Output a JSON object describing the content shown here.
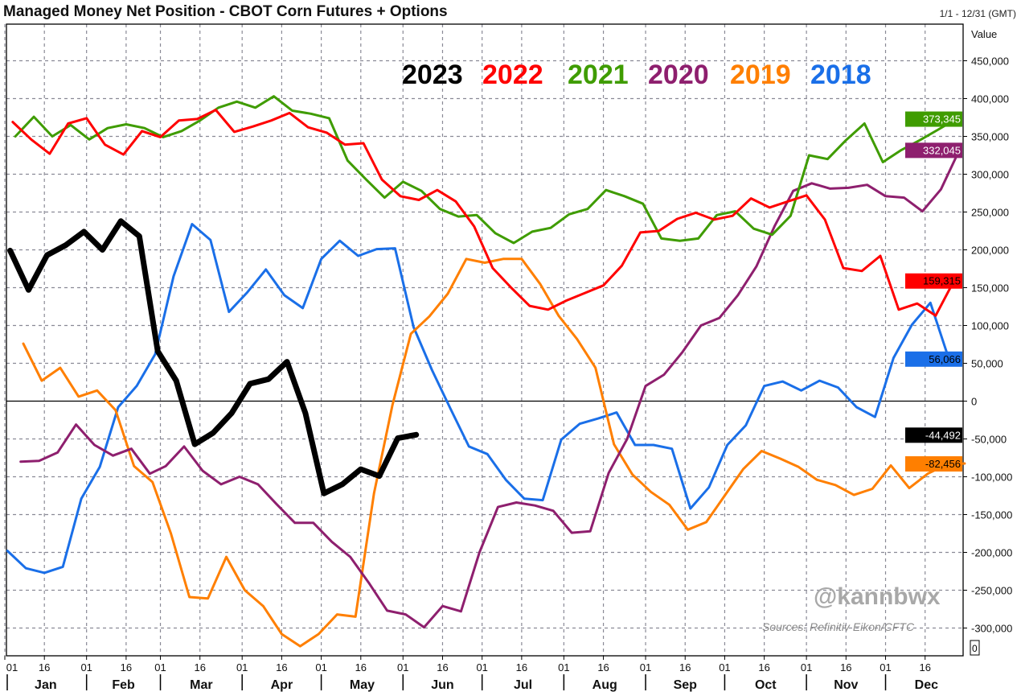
{
  "header": {
    "title": "Managed Money Net Position - CBOT Corn Futures + Options",
    "date_range": "1/1 - 12/31 (GMT)"
  },
  "watermark": "@kannbwx",
  "source": "Sources: Refinitiv Eikon/CFTC",
  "corner_box": "0",
  "chart_data": {
    "type": "line",
    "title": "Managed Money Net Position - CBOT Corn Futures + Options",
    "ylabel": "Value",
    "xlabel": "",
    "ylim": [
      -337000,
      498000
    ],
    "grid": true,
    "legend": "top-center",
    "y_ticks": [
      450000,
      400000,
      350000,
      300000,
      250000,
      200000,
      150000,
      100000,
      50000,
      0,
      -50000,
      -100000,
      -150000,
      -200000,
      -250000,
      -300000
    ],
    "y_tick_labels": [
      "450,000",
      "400,000",
      "350,000",
      "300,000",
      "250,000",
      "200,000",
      "150,000",
      "100,000",
      "50,000",
      "0",
      "-50,000",
      "-100,000",
      "-150,000",
      "-200,000",
      "-250,000",
      "-300,000"
    ],
    "x_tick_labels": [
      "01",
      "16"
    ],
    "months": [
      "Jan",
      "Feb",
      "Mar",
      "Apr",
      "May",
      "Jun",
      "Jul",
      "Aug",
      "Sep",
      "Oct",
      "Nov",
      "Dec"
    ],
    "series": [
      {
        "name": "2023",
        "color": "#000000",
        "last_label": "-44,492",
        "badge_text_color": "#ffffff",
        "dates": [
          "01-03",
          "01-10",
          "01-17",
          "01-24",
          "01-31",
          "02-07",
          "02-14",
          "02-21",
          "02-28",
          "03-07",
          "03-14",
          "03-21",
          "03-28",
          "04-04",
          "04-11",
          "04-18",
          "04-25",
          "05-02",
          "05-09",
          "05-16",
          "05-23",
          "05-30",
          "06-06"
        ],
        "values": [
          199000,
          147000,
          193000,
          206000,
          224000,
          200000,
          238000,
          218000,
          66000,
          27000,
          -57000,
          -42000,
          -16000,
          23000,
          29000,
          52000,
          -16000,
          -122000,
          -110000,
          -90000,
          -99000,
          -49000,
          -44492
        ]
      },
      {
        "name": "2022",
        "color": "#ff0000",
        "last_label": "159,315",
        "badge_text_color": "#000000",
        "dates": [
          "01-04",
          "01-11",
          "01-18",
          "01-25",
          "02-01",
          "02-08",
          "02-15",
          "02-22",
          "03-01",
          "03-08",
          "03-15",
          "03-22",
          "03-29",
          "04-05",
          "04-12",
          "04-19",
          "04-26",
          "05-03",
          "05-10",
          "05-17",
          "05-24",
          "05-31",
          "06-07",
          "06-14",
          "06-21",
          "06-28",
          "07-05",
          "07-12",
          "07-19",
          "07-26",
          "08-02",
          "08-09",
          "08-16",
          "08-23",
          "08-30",
          "09-06",
          "09-13",
          "09-20",
          "09-27",
          "10-04",
          "10-11",
          "10-18",
          "10-25",
          "11-01",
          "11-08",
          "11-15",
          "11-22",
          "11-29",
          "12-06",
          "12-13",
          "12-20",
          "12-27"
        ],
        "values": [
          369000,
          346000,
          327000,
          367000,
          374000,
          339000,
          326000,
          357000,
          349000,
          371000,
          373000,
          385000,
          356000,
          363000,
          371000,
          381000,
          362000,
          355000,
          339000,
          341000,
          293000,
          271000,
          266000,
          279000,
          264000,
          231000,
          176000,
          150000,
          126000,
          121000,
          133000,
          143000,
          153000,
          179000,
          223000,
          225000,
          241000,
          249000,
          240000,
          245000,
          268000,
          256000,
          264000,
          272000,
          240000,
          176000,
          172000,
          192000,
          121000,
          129000,
          113000,
          159315
        ]
      },
      {
        "name": "2021",
        "color": "#3f9c00",
        "last_label": "373,345",
        "badge_text_color": "#ffffff",
        "dates": [
          "01-05",
          "01-12",
          "01-19",
          "01-26",
          "02-02",
          "02-09",
          "02-16",
          "02-23",
          "03-02",
          "03-09",
          "03-16",
          "03-23",
          "03-30",
          "04-06",
          "04-13",
          "04-20",
          "04-27",
          "05-04",
          "05-11",
          "05-18",
          "05-25",
          "06-01",
          "06-08",
          "06-15",
          "06-22",
          "06-29",
          "07-06",
          "07-13",
          "07-20",
          "07-27",
          "08-03",
          "08-10",
          "08-17",
          "08-24",
          "08-31",
          "09-07",
          "09-14",
          "09-21",
          "09-28",
          "10-05",
          "10-12",
          "10-19",
          "10-26",
          "11-02",
          "11-09",
          "11-16",
          "11-23",
          "11-30",
          "12-07",
          "12-14",
          "12-21",
          "12-28"
        ],
        "values": [
          350000,
          376000,
          350000,
          365000,
          346000,
          361000,
          366000,
          361000,
          349000,
          357000,
          371000,
          388000,
          396000,
          388000,
          403000,
          384000,
          380000,
          374000,
          318000,
          293000,
          269000,
          290000,
          278000,
          254000,
          244000,
          246000,
          222000,
          209000,
          224000,
          229000,
          247000,
          254000,
          279000,
          271000,
          261000,
          215000,
          212000,
          215000,
          246000,
          251000,
          228000,
          220000,
          245000,
          325000,
          320000,
          345000,
          367000,
          316000,
          332000,
          345000,
          359000,
          373345
        ]
      },
      {
        "name": "2020",
        "color": "#8e1f6e",
        "last_label": "332,045",
        "badge_text_color": "#ffffff",
        "dates": [
          "01-07",
          "01-14",
          "01-21",
          "01-28",
          "02-04",
          "02-11",
          "02-18",
          "02-25",
          "03-03",
          "03-10",
          "03-17",
          "03-24",
          "03-31",
          "04-07",
          "04-14",
          "04-21",
          "04-28",
          "05-05",
          "05-12",
          "05-19",
          "05-26",
          "06-02",
          "06-09",
          "06-16",
          "06-23",
          "06-30",
          "07-07",
          "07-14",
          "07-21",
          "07-28",
          "08-04",
          "08-11",
          "08-18",
          "08-25",
          "09-01",
          "09-08",
          "09-15",
          "09-22",
          "09-29",
          "10-06",
          "10-13",
          "10-20",
          "10-27",
          "11-03",
          "11-10",
          "11-17",
          "11-24",
          "12-01",
          "12-08",
          "12-15",
          "12-22",
          "12-29"
        ],
        "values": [
          -80000,
          -79000,
          -68000,
          -31000,
          -58000,
          -72000,
          -63000,
          -96000,
          -86000,
          -60000,
          -92000,
          -110000,
          -100000,
          -110000,
          -136000,
          -161000,
          -161000,
          -186000,
          -206000,
          -240000,
          -277000,
          -282000,
          -299000,
          -271000,
          -278000,
          -200000,
          -140000,
          -134000,
          -138000,
          -145000,
          -174000,
          -172000,
          -95000,
          -50000,
          20000,
          35000,
          65000,
          100000,
          110000,
          140000,
          178000,
          232000,
          278000,
          288000,
          281000,
          282000,
          286000,
          271000,
          269000,
          251000,
          280000,
          332045
        ]
      },
      {
        "name": "2019",
        "color": "#ff7f00",
        "last_label": "-82,456",
        "badge_text_color": "#000000",
        "dates": [
          "01-08",
          "01-15",
          "01-22",
          "01-29",
          "02-05",
          "02-12",
          "02-19",
          "02-26",
          "03-05",
          "03-12",
          "03-19",
          "03-26",
          "04-02",
          "04-09",
          "04-16",
          "04-23",
          "04-30",
          "05-07",
          "05-14",
          "05-21",
          "05-28",
          "06-04",
          "06-11",
          "06-18",
          "06-25",
          "07-02",
          "07-09",
          "07-16",
          "07-23",
          "07-30",
          "08-06",
          "08-13",
          "08-20",
          "08-27",
          "09-03",
          "09-10",
          "09-17",
          "09-24",
          "10-01",
          "10-08",
          "10-15",
          "10-22",
          "10-29",
          "11-05",
          "11-12",
          "11-19",
          "11-26",
          "12-03",
          "12-10",
          "12-17",
          "12-24",
          "12-31"
        ],
        "values": [
          76000,
          27000,
          44000,
          6000,
          14000,
          -12000,
          -86000,
          -107000,
          -175000,
          -259000,
          -261000,
          -206000,
          -250000,
          -271000,
          -308000,
          -324000,
          -308000,
          -282000,
          -285000,
          -122000,
          -5000,
          89000,
          112000,
          142000,
          188000,
          183000,
          188000,
          188000,
          155000,
          113000,
          82000,
          44000,
          -57000,
          -97000,
          -120000,
          -137000,
          -170000,
          -160000,
          -125000,
          -90000,
          -66000,
          -76000,
          -87000,
          -104000,
          -111000,
          -124000,
          -116000,
          -85000,
          -115000,
          -96000,
          -84000,
          -82456
        ]
      },
      {
        "name": "2018",
        "color": "#1a6fe8",
        "last_label": "56,066",
        "badge_text_color": "#000000",
        "dates": [
          "01-02",
          "01-09",
          "01-16",
          "01-23",
          "01-30",
          "02-06",
          "02-13",
          "02-20",
          "02-27",
          "03-06",
          "03-13",
          "03-20",
          "03-27",
          "04-03",
          "04-10",
          "04-17",
          "04-24",
          "05-01",
          "05-08",
          "05-15",
          "05-22",
          "05-29",
          "06-05",
          "06-12",
          "06-19",
          "06-26",
          "07-03",
          "07-10",
          "07-17",
          "07-24",
          "07-31",
          "08-07",
          "08-14",
          "08-21",
          "08-28",
          "09-04",
          "09-11",
          "09-18",
          "09-25",
          "10-02",
          "10-09",
          "10-16",
          "10-23",
          "10-30",
          "11-06",
          "11-13",
          "11-20",
          "11-27",
          "12-04",
          "12-11",
          "12-18",
          "12-25"
        ],
        "values": [
          -198000,
          -221000,
          -227000,
          -219000,
          -129000,
          -87000,
          -8000,
          20000,
          62000,
          165000,
          234000,
          213000,
          118000,
          144000,
          174000,
          140000,
          123000,
          188000,
          212000,
          192000,
          201000,
          202000,
          98000,
          41000,
          -10000,
          -60000,
          -70000,
          -104000,
          -129000,
          -131000,
          -51000,
          -30000,
          -23000,
          -15000,
          -58000,
          -58000,
          -63000,
          -142000,
          -114000,
          -58000,
          -32000,
          20000,
          26000,
          14000,
          27000,
          18000,
          -8000,
          -21000,
          57000,
          101000,
          130000,
          56066
        ]
      }
    ]
  }
}
